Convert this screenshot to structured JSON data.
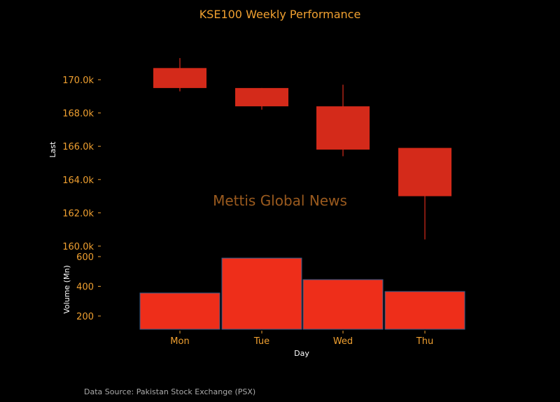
{
  "chart_data": {
    "type": "candlestick",
    "title": "KSE100 Weekly Performance",
    "categories": [
      "Mon",
      "Tue",
      "Wed",
      "Thu"
    ],
    "price": {
      "ylabel": "Last",
      "ylim": [
        160000,
        171500
      ],
      "yticks": [
        160000,
        162000,
        164000,
        166000,
        168000,
        170000
      ],
      "ytick_labels": [
        "160.0k",
        "162.0k",
        "164.0k",
        "166.0k",
        "168.0k",
        "170.0k"
      ],
      "candles": [
        {
          "day": "Mon",
          "open": 170700,
          "close": 169500,
          "high": 171300,
          "low": 169300
        },
        {
          "day": "Tue",
          "open": 169500,
          "close": 168400,
          "high": 169500,
          "low": 168200
        },
        {
          "day": "Wed",
          "open": 168400,
          "close": 165800,
          "high": 169700,
          "low": 165400
        },
        {
          "day": "Thu",
          "open": 165900,
          "close": 163000,
          "high": 165900,
          "low": 160400
        }
      ]
    },
    "volume": {
      "ylabel": "Volume (Mn)",
      "ylim": [
        110,
        610
      ],
      "yticks": [
        200,
        400,
        600
      ],
      "ytick_labels": [
        "200",
        "400",
        "600"
      ],
      "values": [
        355,
        590,
        445,
        365
      ]
    },
    "xlabel": "Day",
    "grid": false,
    "colors": {
      "candle": "#d42a1a",
      "volume_bar": "#ee2e1a",
      "volume_edge": "#2d5a8a",
      "text": "#f0a030"
    }
  },
  "watermark": "Mettis Global News",
  "source_note": "Data Source: Pakistan Stock Exchange (PSX)"
}
